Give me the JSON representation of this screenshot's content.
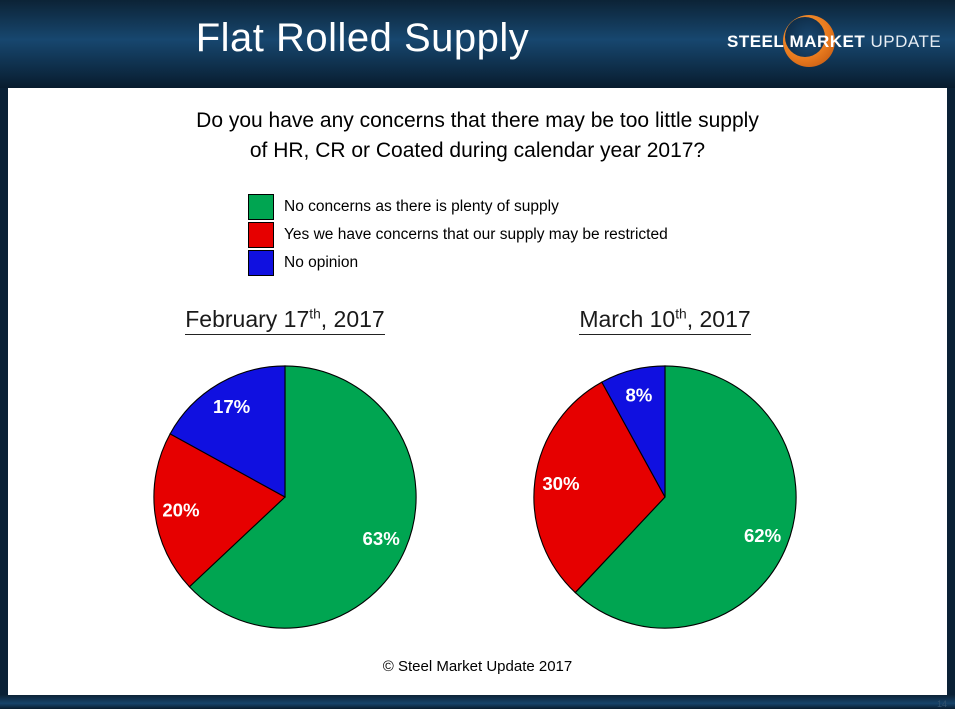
{
  "header": {
    "title": "Flat Rolled Supply",
    "logo": {
      "steel": "STEEL",
      "market": "MARKET",
      "update": "UPDATE"
    }
  },
  "question": {
    "line1": "Do you have any concerns that there may be too little supply",
    "line2": "of HR, CR or Coated during calendar year 2017?"
  },
  "legend": {
    "items": [
      {
        "label": "No concerns as there is plenty of supply",
        "color": "#00a551"
      },
      {
        "label": "Yes we have concerns that our supply may be restricted",
        "color": "#e60000"
      },
      {
        "label": "No opinion",
        "color": "#1010e0"
      }
    ]
  },
  "footer": {
    "copyright": "© Steel Market Update 2017",
    "page_number": "14"
  },
  "chart_data": [
    {
      "type": "pie",
      "title": "February 17th, 2017",
      "title_prefix": "February 17",
      "title_sup": "th",
      "title_suffix": ", 2017",
      "categories": [
        "No concerns as there is plenty of supply",
        "Yes we have concerns that our supply may be restricted",
        "No opinion"
      ],
      "values": [
        63,
        20,
        17
      ],
      "data_labels": [
        "63%",
        "20%",
        "17%"
      ],
      "colors": [
        "#00a551",
        "#e60000",
        "#1010e0"
      ],
      "start_angle_deg": 0,
      "direction": "clockwise",
      "unit": "percent",
      "legend_position": "shared-top"
    },
    {
      "type": "pie",
      "title": "March 10th, 2017",
      "title_prefix": "March 10",
      "title_sup": "th",
      "title_suffix": ", 2017",
      "categories": [
        "No concerns as there is plenty of supply",
        "Yes we have concerns that our supply may be restricted",
        "No opinion"
      ],
      "values": [
        62,
        30,
        8
      ],
      "data_labels": [
        "62%",
        "30%",
        "8%"
      ],
      "colors": [
        "#00a551",
        "#e60000",
        "#1010e0"
      ],
      "start_angle_deg": 0,
      "direction": "clockwise",
      "unit": "percent",
      "legend_position": "shared-top"
    }
  ]
}
